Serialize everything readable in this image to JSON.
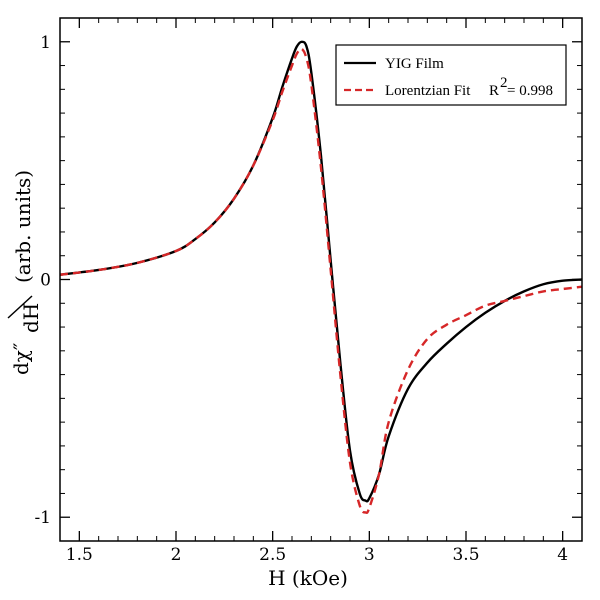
{
  "chart_data": {
    "type": "line",
    "title": "",
    "xlabel": "H (kOe)",
    "ylabel": {
      "numerator": "dχ″",
      "denominator": "dH",
      "units": "(arb. units)"
    },
    "xlim": [
      1.4,
      4.1
    ],
    "ylim": [
      -1.1,
      1.1
    ],
    "x_ticks": [
      1.5,
      2,
      2.5,
      3,
      3.5,
      4
    ],
    "x_tick_labels": [
      "1.5",
      "2",
      "2.5",
      "3",
      "3.5",
      "4"
    ],
    "y_ticks": [
      -1,
      0,
      1
    ],
    "y_tick_labels": [
      "-1",
      "0",
      "1"
    ],
    "legend_position": "top-right",
    "series": [
      {
        "name": "YIG Film",
        "color": "#000000",
        "style": "solid",
        "x": [
          1.4,
          1.6,
          1.8,
          2.0,
          2.1,
          2.2,
          2.3,
          2.4,
          2.5,
          2.55,
          2.6,
          2.625,
          2.65,
          2.675,
          2.7,
          2.75,
          2.8,
          2.85,
          2.9,
          2.95,
          2.98,
          3.0,
          3.05,
          3.1,
          3.2,
          3.3,
          3.4,
          3.5,
          3.6,
          3.7,
          3.8,
          3.9,
          4.0,
          4.1
        ],
        "values": [
          0.02,
          0.04,
          0.07,
          0.12,
          0.17,
          0.24,
          0.34,
          0.48,
          0.68,
          0.81,
          0.93,
          0.98,
          1.0,
          0.98,
          0.87,
          0.52,
          0.08,
          -0.35,
          -0.72,
          -0.9,
          -0.93,
          -0.92,
          -0.82,
          -0.66,
          -0.46,
          -0.35,
          -0.27,
          -0.2,
          -0.14,
          -0.09,
          -0.05,
          -0.02,
          -0.005,
          0.0
        ]
      },
      {
        "name": "Lorentzian Fit",
        "label_suffix": "R",
        "r2_exponent": "2",
        "r2_value": "= 0.998",
        "color": "#d62728",
        "style": "dashed",
        "x": [
          1.4,
          1.6,
          1.8,
          2.0,
          2.1,
          2.2,
          2.3,
          2.4,
          2.5,
          2.55,
          2.6,
          2.625,
          2.65,
          2.675,
          2.7,
          2.75,
          2.8,
          2.85,
          2.9,
          2.95,
          2.98,
          3.0,
          3.05,
          3.1,
          3.2,
          3.3,
          3.4,
          3.5,
          3.6,
          3.7,
          3.8,
          3.9,
          4.0,
          4.1
        ],
        "values": [
          0.02,
          0.04,
          0.07,
          0.12,
          0.17,
          0.24,
          0.34,
          0.48,
          0.67,
          0.79,
          0.9,
          0.95,
          0.97,
          0.93,
          0.82,
          0.47,
          0.04,
          -0.4,
          -0.77,
          -0.95,
          -0.98,
          -0.96,
          -0.82,
          -0.6,
          -0.38,
          -0.25,
          -0.19,
          -0.15,
          -0.11,
          -0.09,
          -0.07,
          -0.05,
          -0.04,
          -0.03
        ]
      }
    ]
  }
}
